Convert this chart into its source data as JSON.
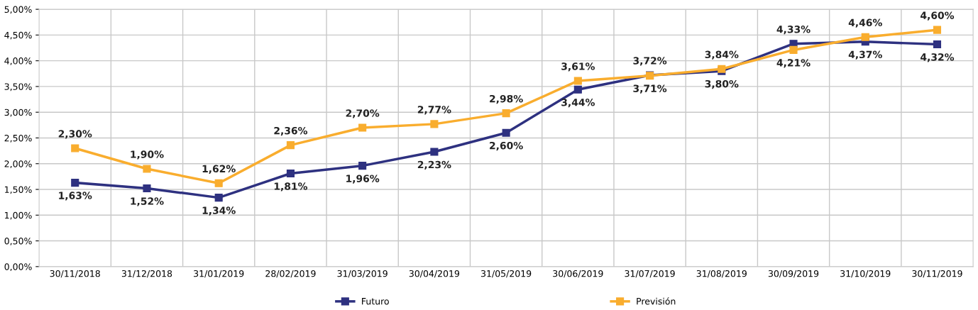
{
  "chart_data": {
    "type": "line",
    "categories": [
      "30/11/2018",
      "31/12/2018",
      "31/01/2019",
      "28/02/2019",
      "31/03/2019",
      "30/04/2019",
      "31/05/2019",
      "30/06/2019",
      "31/07/2019",
      "31/08/2019",
      "30/09/2019",
      "31/10/2019",
      "30/11/2019"
    ],
    "series": [
      {
        "name": "Futuro",
        "color": "#2e3180",
        "values": [
          1.63,
          1.52,
          1.34,
          1.81,
          1.96,
          2.23,
          2.6,
          3.44,
          3.72,
          3.8,
          4.33,
          4.37,
          4.32
        ],
        "value_labels": [
          "1,63%",
          "1,52%",
          "1,34%",
          "1,81%",
          "1,96%",
          "2,23%",
          "2,60%",
          "3,44%",
          "3,72%",
          "3,80%",
          "4,33%",
          "4,37%",
          "4,32%"
        ]
      },
      {
        "name": "Previsión",
        "color": "#f9ad2e",
        "values": [
          2.3,
          1.9,
          1.62,
          2.36,
          2.7,
          2.77,
          2.98,
          3.61,
          3.71,
          3.84,
          4.21,
          4.46,
          4.6
        ],
        "value_labels": [
          "2,30%",
          "1,90%",
          "1,62%",
          "2,36%",
          "2,70%",
          "2,77%",
          "2,98%",
          "3,61%",
          "3,71%",
          "3,84%",
          "4,21%",
          "4,46%",
          "4,60%"
        ]
      }
    ],
    "ylim": [
      0,
      5
    ],
    "yticks": [
      {
        "value": 0,
        "label": "0,00%"
      },
      {
        "value": 0.5,
        "label": "0,50%"
      },
      {
        "value": 1,
        "label": "1,00%"
      },
      {
        "value": 1.5,
        "label": "1,50%"
      },
      {
        "value": 2,
        "label": "2,00%"
      },
      {
        "value": 2.5,
        "label": "2,50%"
      },
      {
        "value": 3,
        "label": "3,00%"
      },
      {
        "value": 3.5,
        "label": "3,50%"
      },
      {
        "value": 4,
        "label": "4,00%"
      },
      {
        "value": 4.5,
        "label": "4,50%"
      },
      {
        "value": 5,
        "label": "5,00%"
      }
    ],
    "grid": true,
    "legend": "bottom",
    "marker": "square",
    "line_style": "solid"
  }
}
